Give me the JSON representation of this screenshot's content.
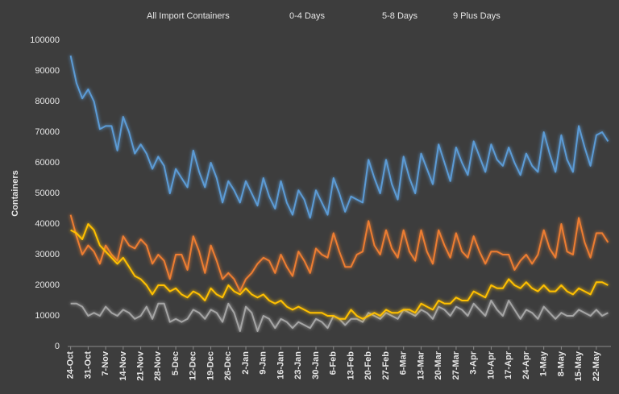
{
  "chart_data": {
    "type": "line",
    "y_label": "Containers",
    "legend": "top",
    "grid": false,
    "ylim": [
      0,
      100000
    ],
    "yticks": [
      0,
      10000,
      20000,
      30000,
      40000,
      50000,
      60000,
      70000,
      80000,
      90000,
      100000
    ],
    "categories": [
      "24-Oct",
      null,
      null,
      "31-Oct",
      null,
      null,
      "7-Nov",
      null,
      null,
      "14-Nov",
      null,
      null,
      "21-Nov",
      null,
      null,
      "28-Nov",
      null,
      null,
      "5-Dec",
      null,
      null,
      "12-Dec",
      null,
      null,
      "19-Dec",
      null,
      null,
      "26-Dec",
      null,
      null,
      "2-Jan",
      null,
      null,
      "9-Jan",
      null,
      null,
      "16-Jan",
      null,
      null,
      "23-Jan",
      null,
      null,
      "30-Jan",
      null,
      null,
      "6-Feb",
      null,
      null,
      "13-Feb",
      null,
      null,
      "20-Feb",
      null,
      null,
      "27-Feb",
      null,
      null,
      "6-Mar",
      null,
      null,
      "13-Mar",
      null,
      null,
      "20-Mar",
      null,
      null,
      "27-Mar",
      null,
      null,
      "3-Apr",
      null,
      null,
      "10-Apr",
      null,
      null,
      "17-Apr",
      null,
      null,
      "24-Apr",
      null,
      null,
      "1-May",
      null,
      null,
      "8-May",
      null,
      null,
      "15-May",
      null,
      null,
      "22-May",
      null,
      null
    ],
    "series": [
      {
        "name": "All Import Containers",
        "color": "#5b9bd5",
        "values": [
          95000,
          86000,
          81000,
          84000,
          80000,
          71000,
          72000,
          72000,
          64000,
          75000,
          70000,
          63000,
          66000,
          63000,
          58000,
          62000,
          59000,
          50000,
          58000,
          55000,
          52000,
          64000,
          57000,
          52000,
          60000,
          55000,
          47000,
          54000,
          51000,
          47000,
          54000,
          50000,
          46000,
          55000,
          49000,
          45000,
          54000,
          47000,
          43000,
          51000,
          48000,
          42000,
          51000,
          47000,
          43000,
          55000,
          50000,
          44000,
          49000,
          48000,
          47000,
          61000,
          55000,
          50000,
          61000,
          53000,
          48000,
          62000,
          55000,
          50000,
          63000,
          58000,
          53000,
          66000,
          60000,
          54000,
          65000,
          60000,
          56000,
          67000,
          62000,
          57000,
          66000,
          61000,
          59000,
          65000,
          60000,
          56000,
          63000,
          59000,
          57000,
          70000,
          63000,
          57000,
          69000,
          61000,
          57000,
          72000,
          65000,
          59000,
          69000,
          70000,
          67000
        ]
      },
      {
        "name": "0-4 Days",
        "color": "#ed7d31",
        "values": [
          43000,
          36000,
          30000,
          33000,
          31000,
          27000,
          33000,
          30000,
          28000,
          36000,
          33000,
          32000,
          35000,
          33000,
          27000,
          30000,
          28000,
          22000,
          30000,
          30000,
          25000,
          36000,
          31000,
          24000,
          33000,
          28000,
          22000,
          24000,
          22000,
          18000,
          22000,
          24000,
          27000,
          29000,
          28000,
          24000,
          30000,
          26000,
          23000,
          31000,
          28000,
          24000,
          32000,
          30000,
          29000,
          37000,
          31000,
          26000,
          26000,
          30000,
          31000,
          41000,
          33000,
          30000,
          38000,
          32000,
          29000,
          38000,
          31000,
          28000,
          38000,
          31000,
          27000,
          38000,
          33000,
          29000,
          37000,
          31000,
          29000,
          36000,
          31000,
          27000,
          31000,
          31000,
          30000,
          30000,
          25000,
          28000,
          30000,
          27000,
          30000,
          38000,
          32000,
          29000,
          40000,
          31000,
          30000,
          42000,
          34000,
          29000,
          37000,
          37000,
          34000
        ]
      },
      {
        "name": "5-8 Days",
        "color": "#a5a5a5",
        "values": [
          14000,
          14000,
          13000,
          10000,
          11000,
          10000,
          13000,
          11000,
          10000,
          12000,
          11000,
          9000,
          10000,
          13000,
          9000,
          14000,
          14000,
          8000,
          9000,
          8000,
          9000,
          12000,
          11000,
          9000,
          12000,
          11000,
          8000,
          14000,
          11000,
          5000,
          13000,
          11000,
          5000,
          10000,
          9000,
          6000,
          9000,
          8000,
          6000,
          8000,
          7000,
          6000,
          9000,
          8000,
          6000,
          10000,
          9000,
          7000,
          9000,
          9000,
          8000,
          11000,
          10000,
          9000,
          11000,
          10000,
          9000,
          12000,
          11000,
          10000,
          12000,
          11000,
          9000,
          13000,
          12000,
          10000,
          13000,
          12000,
          10000,
          14000,
          12000,
          10000,
          15000,
          12000,
          10000,
          15000,
          12000,
          9000,
          12000,
          11000,
          9000,
          13000,
          11000,
          9000,
          11000,
          10000,
          10000,
          12000,
          11000,
          10000,
          12000,
          10000,
          11000
        ]
      },
      {
        "name": "9 Plus Days",
        "color": "#ffc000",
        "values": [
          38000,
          37000,
          35000,
          40000,
          38000,
          33000,
          31000,
          29000,
          27000,
          29000,
          26000,
          23000,
          22000,
          20000,
          17000,
          20000,
          20000,
          18000,
          19000,
          17000,
          16000,
          18000,
          17000,
          15000,
          19000,
          17000,
          16000,
          20000,
          18000,
          17000,
          19000,
          17000,
          16000,
          17000,
          15000,
          14000,
          15000,
          13000,
          12000,
          13000,
          12000,
          11000,
          11000,
          11000,
          10000,
          10000,
          9000,
          9000,
          12000,
          10000,
          9000,
          10000,
          11000,
          10000,
          12000,
          11000,
          11000,
          12000,
          12000,
          11000,
          14000,
          13000,
          12000,
          15000,
          14000,
          14000,
          16000,
          15000,
          15000,
          18000,
          17000,
          16000,
          20000,
          19000,
          19000,
          22000,
          20000,
          19000,
          21000,
          19000,
          18000,
          20000,
          18000,
          18000,
          20000,
          18000,
          17000,
          19000,
          18000,
          17000,
          21000,
          21000,
          20000
        ]
      }
    ]
  }
}
